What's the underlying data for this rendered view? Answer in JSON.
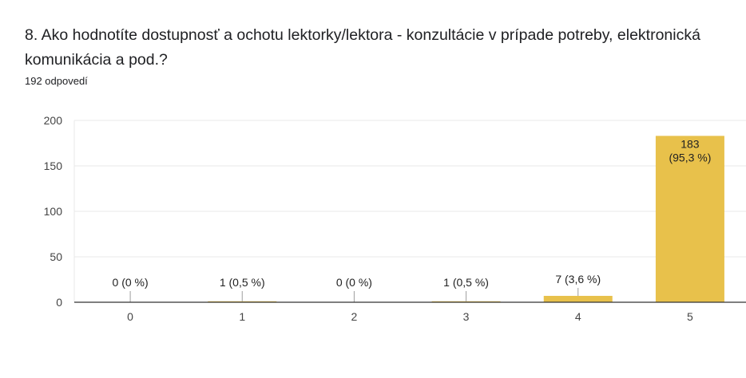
{
  "question": "8. Ako hodnotíte dostupnosť a ochotu lektorky/lektora - konzultácie v prípade potreby, elektronická komunikácia a pod.?",
  "responses": "192 odpovedí",
  "colors": {
    "bar": "#e8c14b",
    "grid": "#e8e8e8",
    "axis": "#333333",
    "leader": "#9e9e9e"
  },
  "chart_data": {
    "type": "bar",
    "categories": [
      "0",
      "1",
      "2",
      "3",
      "4",
      "5"
    ],
    "values": [
      0,
      1,
      0,
      1,
      7,
      183
    ],
    "data_labels": [
      "0 (0 %)",
      "1 (0,5 %)",
      "0 (0 %)",
      "1 (0,5 %)",
      "7 (3,6 %)",
      "183\n(95,3 %)"
    ],
    "yticks": [
      "0",
      "50",
      "100",
      "150",
      "200"
    ],
    "ylim": [
      0,
      200
    ],
    "grid": true,
    "legend": "none"
  }
}
